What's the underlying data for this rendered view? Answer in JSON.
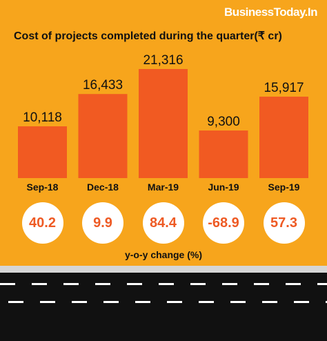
{
  "brand": "BusinessToday.In",
  "chart_data": {
    "type": "bar",
    "title": "Cost of projects completed during the quarter(₹ cr)",
    "categories": [
      "Sep-18",
      "Dec-18",
      "Mar-19",
      "Jun-19",
      "Sep-19"
    ],
    "values": [
      10118,
      16433,
      21316,
      9300,
      15917
    ],
    "value_labels": [
      "10,118",
      "16,433",
      "21,316",
      "9,300",
      "15,917"
    ],
    "yoy_change_pct": [
      "40.2",
      "9.9",
      "84.4",
      "-68.9",
      "57.3"
    ],
    "yoy_label": "y-o-y change (%)",
    "ylim": [
      0,
      21316
    ]
  },
  "colors": {
    "background": "#F7A51C",
    "bar": "#F15A22",
    "bubble_text": "#EE5A24",
    "road": "#111111"
  }
}
